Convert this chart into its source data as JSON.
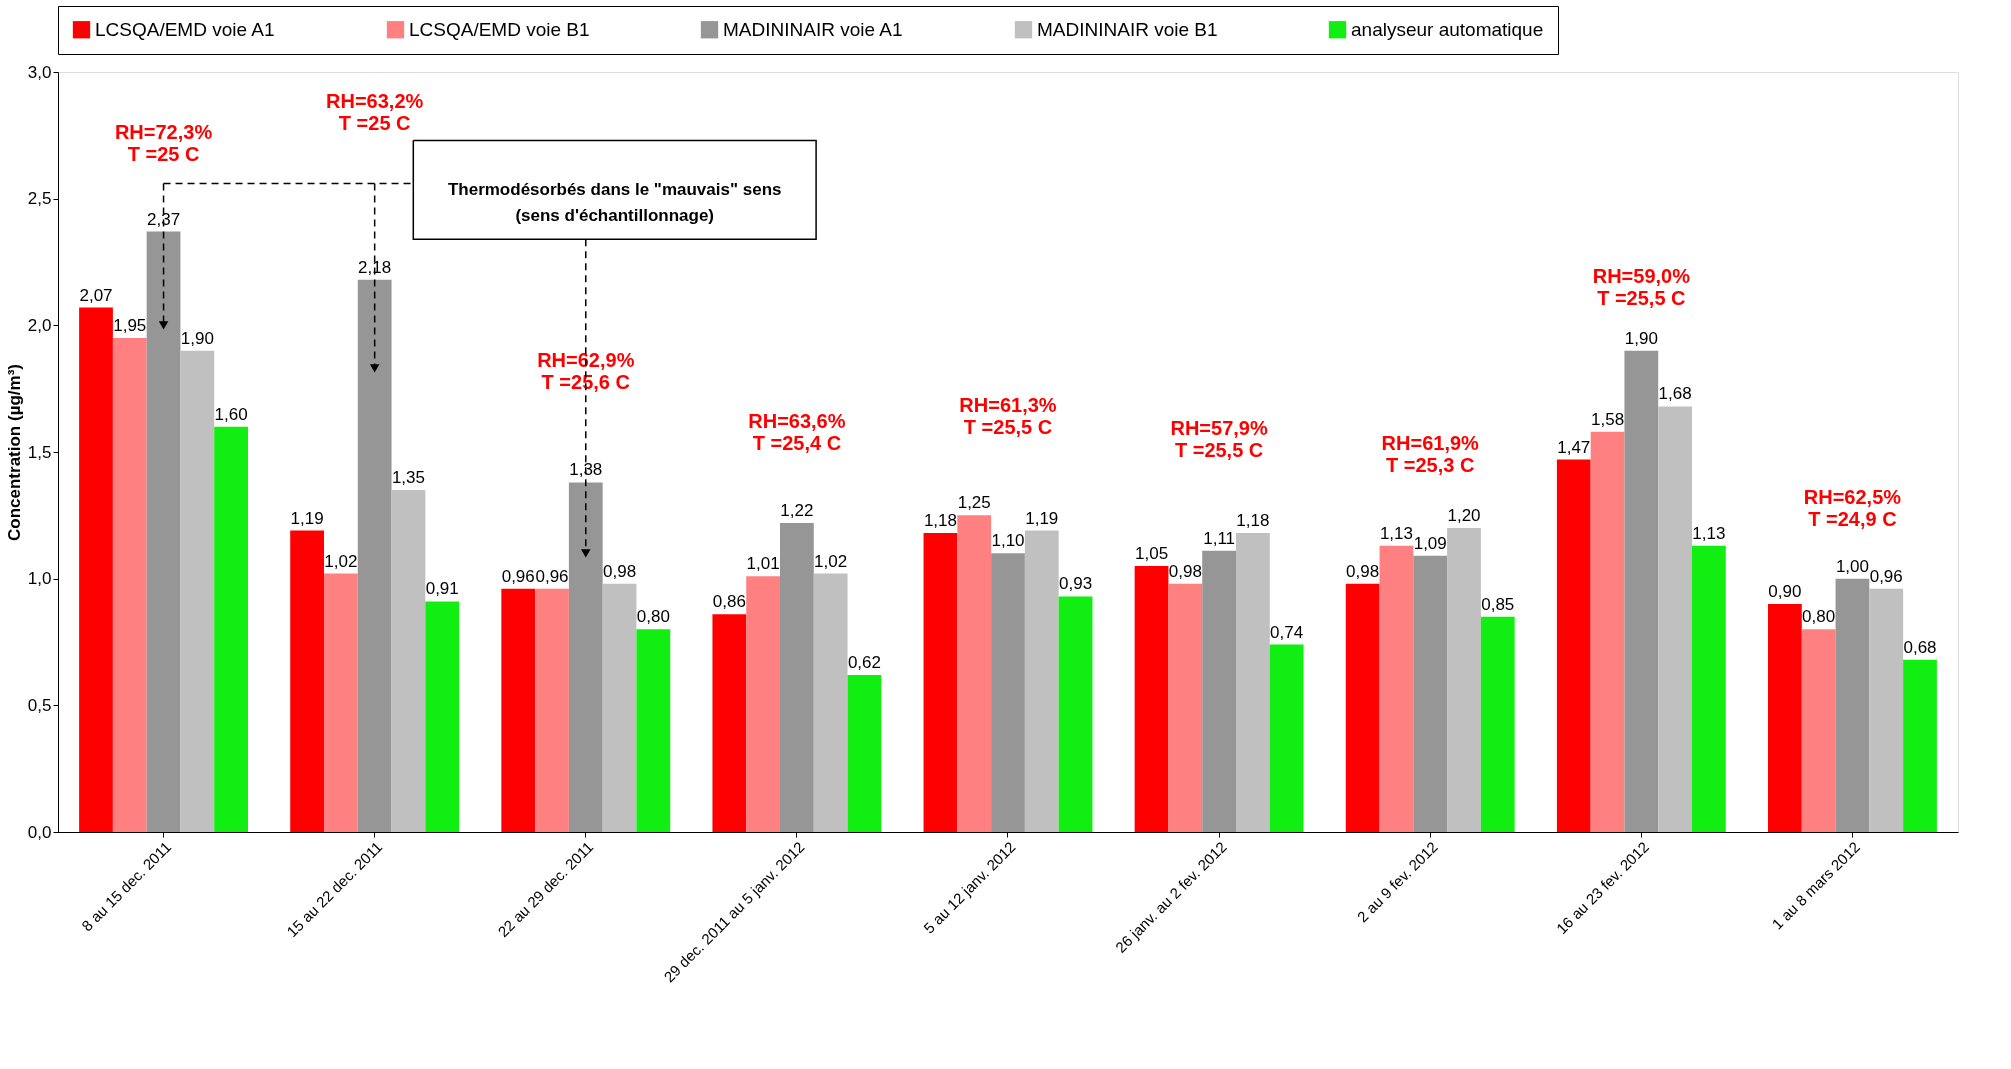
{
  "chart_data": {
    "type": "bar",
    "ylabel": "Concentration (µg/m³)",
    "categories": [
      "8 au 15 dec. 2011",
      "15 au 22 dec. 2011",
      "22 au 29 dec. 2011",
      "29 dec. 2011 au 5 janv. 2012",
      "5 au 12 janv. 2012",
      "26 janv. au 2 fev. 2012",
      "2 au 9 fev. 2012",
      "16 au 23 fev. 2012",
      "1 au 8 mars 2012"
    ],
    "series": [
      {
        "name": "LCSQA/EMD voie A1",
        "color": "#ff0000",
        "values": [
          2.07,
          1.19,
          0.96,
          0.86,
          1.18,
          1.05,
          0.98,
          1.47,
          0.9
        ],
        "value_labels": [
          "2,07",
          "1,19",
          "0,96",
          "0,86",
          "1,18",
          "1,05",
          "0,98",
          "1,47",
          "0,90"
        ]
      },
      {
        "name": "LCSQA/EMD voie B1",
        "color": "#ff8080",
        "values": [
          1.95,
          1.02,
          0.96,
          1.01,
          1.25,
          0.98,
          1.13,
          1.58,
          0.8
        ],
        "value_labels": [
          "1,95",
          "1,02",
          "0,96",
          "1,01",
          "1,25",
          "0,98",
          "1,13",
          "1,58",
          "0,80"
        ]
      },
      {
        "name": "MADININAIR voie A1",
        "color": "#969696",
        "values": [
          2.37,
          2.18,
          1.38,
          1.22,
          1.1,
          1.11,
          1.09,
          1.9,
          1.0
        ],
        "value_labels": [
          "2,37",
          "2,18",
          "1,38",
          "1,22",
          "1,10",
          "1,11",
          "1,09",
          "1,90",
          "1,00"
        ]
      },
      {
        "name": "MADININAIR voie B1",
        "color": "#c0c0c0",
        "values": [
          1.9,
          1.35,
          0.98,
          1.02,
          1.19,
          1.18,
          1.2,
          1.68,
          0.96
        ],
        "value_labels": [
          "1,90",
          "1,35",
          "0,98",
          "1,02",
          "1,19",
          "1,18",
          "1,20",
          "1,68",
          "0,96"
        ]
      },
      {
        "name": "analyseur automatique",
        "color": "#11ee11",
        "values": [
          1.6,
          0.91,
          0.8,
          0.62,
          0.93,
          0.74,
          0.85,
          1.13,
          0.68
        ],
        "value_labels": [
          "1,60",
          "0,91",
          "0,80",
          "0,62",
          "0,93",
          "0,74",
          "0,85",
          "1,13",
          "0,68"
        ]
      }
    ],
    "ylim": [
      0,
      3
    ],
    "yticks": [
      {
        "value": 0,
        "label": "0,0"
      },
      {
        "value": 0.5,
        "label": "0,5"
      },
      {
        "value": 1,
        "label": "1,0"
      },
      {
        "value": 1.5,
        "label": "1,5"
      },
      {
        "value": 2,
        "label": "2,0"
      },
      {
        "value": 2.5,
        "label": "2,5"
      },
      {
        "value": 3,
        "label": "3,0"
      }
    ],
    "grid": false,
    "legend": "top",
    "annotations": [
      "RH=72,3%\nT =25 C",
      "RH=63,2%\nT =25 C",
      "RH=62,9%\nT =25,6 C",
      "RH=63,6%\nT =25,4 C",
      "RH=61,3%\nT =25,5 C",
      "RH=57,9%\nT =25,5 C",
      "RH=61,9%\nT =25,3 C",
      "RH=59,0%\nT =25,5 C",
      "RH=62,5%\nT =24,9 C",
      "Thermodésorbés dans le \"mauvais\" sens\n(sens d'échantillonnage)"
    ]
  }
}
